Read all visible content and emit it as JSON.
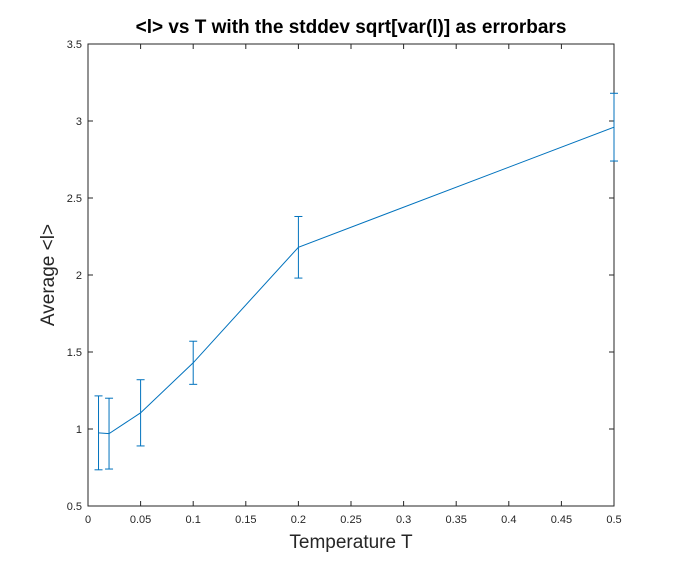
{
  "chart_data": {
    "type": "line",
    "title": "<l> vs T with the stddev sqrt[var(l)] as errorbars",
    "xlabel": "Temperature T",
    "ylabel": "Average <l>",
    "xlim": [
      0,
      0.5
    ],
    "ylim": [
      0.5,
      3.5
    ],
    "xticks": [
      0,
      0.05,
      0.1,
      0.15,
      0.2,
      0.25,
      0.3,
      0.35,
      0.4,
      0.45,
      0.5
    ],
    "xtick_labels": [
      "0",
      "0.05",
      "0.1",
      "0.15",
      "0.2",
      "0.25",
      "0.3",
      "0.35",
      "0.4",
      "0.45",
      "0.5"
    ],
    "yticks": [
      0.5,
      1,
      1.5,
      2,
      2.5,
      3,
      3.5
    ],
    "ytick_labels": [
      "0.5",
      "1",
      "1.5",
      "2",
      "2.5",
      "3",
      "3.5"
    ],
    "grid": false,
    "series": [
      {
        "color": "#0072bd",
        "x": [
          0.01,
          0.02,
          0.05,
          0.1,
          0.2,
          0.5
        ],
        "y": [
          0.975,
          0.97,
          1.105,
          1.43,
          2.18,
          2.96
        ],
        "err": [
          0.24,
          0.23,
          0.215,
          0.14,
          0.2,
          0.22
        ]
      }
    ]
  }
}
